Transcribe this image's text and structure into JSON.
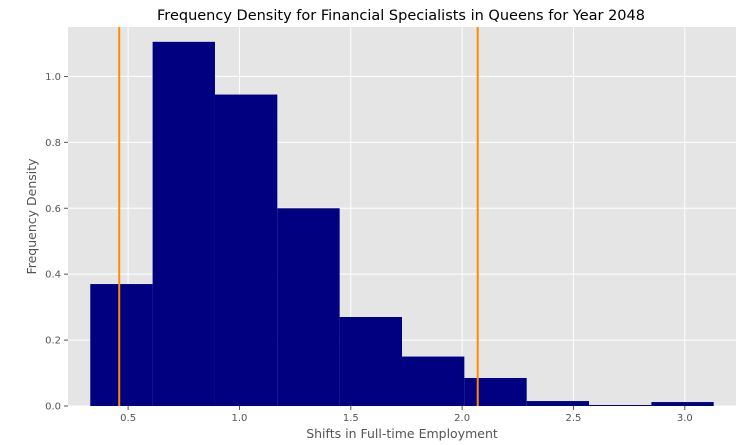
{
  "chart_data": {
    "type": "bar",
    "title": "Frequency Density for Financial Specialists in Queens for Year 2048",
    "xlabel": "Shifts in Full-time Employment",
    "ylabel": "Frequency Density",
    "xlim": [
      0.23,
      3.23
    ],
    "ylim": [
      0,
      1.15
    ],
    "xticks": [
      "0.5",
      "1.0",
      "1.5",
      "2.0",
      "2.5",
      "3.0"
    ],
    "yticks": [
      "0.0",
      "0.2",
      "0.4",
      "0.6",
      "0.8",
      "1.0"
    ],
    "grid": true,
    "bins": [
      {
        "x0": 0.33,
        "x1": 0.61,
        "value": 0.37
      },
      {
        "x0": 0.61,
        "x1": 0.89,
        "value": 1.105
      },
      {
        "x0": 0.89,
        "x1": 1.17,
        "value": 0.945
      },
      {
        "x0": 1.17,
        "x1": 1.45,
        "value": 0.6
      },
      {
        "x0": 1.45,
        "x1": 1.73,
        "value": 0.27
      },
      {
        "x0": 1.73,
        "x1": 2.01,
        "value": 0.15
      },
      {
        "x0": 2.01,
        "x1": 2.29,
        "value": 0.085
      },
      {
        "x0": 2.29,
        "x1": 2.57,
        "value": 0.015
      },
      {
        "x0": 2.57,
        "x1": 2.85,
        "value": 0.003
      },
      {
        "x0": 2.85,
        "x1": 3.13,
        "value": 0.012
      }
    ],
    "vlines": [
      0.46,
      2.07
    ],
    "colors": {
      "bar": "#000080",
      "vline": "#ff8c00",
      "plot_bg": "#e5e5e5",
      "grid": "#ffffff"
    }
  }
}
